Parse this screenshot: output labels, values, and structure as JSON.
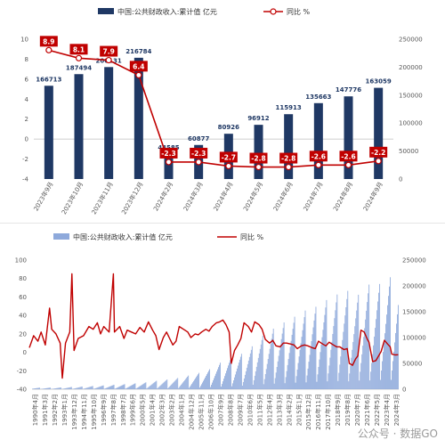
{
  "chart_data": [
    {
      "type": "bar+line",
      "legend": {
        "bar": "中国:公共财政收入:累计值 亿元",
        "line": "同比 %",
        "placement": "top"
      },
      "categories": [
        "2023年9月",
        "2023年10月",
        "2023年11月",
        "2023年12月",
        "2024年2月",
        "2024年3月",
        "2024年4月",
        "2024年5月",
        "2024年6月",
        "2024年7月",
        "2024年8月",
        "2024年9月"
      ],
      "bar_values": [
        166713,
        187494,
        200131,
        216784,
        44585,
        60877,
        80926,
        96912,
        115913,
        135663,
        147776,
        163059
      ],
      "bar_labels": [
        "166713",
        "187494",
        "200131",
        "216784",
        "44585",
        "60877",
        "80926",
        "96912",
        "115913",
        "135663",
        "147776",
        "163059"
      ],
      "line_values": [
        8.9,
        8.1,
        7.9,
        6.4,
        -2.3,
        -2.3,
        -2.7,
        -2.8,
        -2.8,
        -2.6,
        -2.6,
        -2.2
      ],
      "line_labels": [
        "8.9",
        "8.1",
        "7.9",
        "6.4",
        "-2.3",
        "-2.3",
        "-2.7",
        "-2.8",
        "-2.8",
        "-2.6",
        "-2.6",
        "-2.2"
      ],
      "y_left": {
        "min": -4,
        "max": 10,
        "ticks": [
          "10",
          "8",
          "6",
          "4",
          "2",
          "0",
          "-2",
          "-4"
        ]
      },
      "y_right": {
        "min": 0,
        "max": 250000,
        "ticks": [
          "250000",
          "200000",
          "150000",
          "100000",
          "50000",
          "0"
        ]
      },
      "colors": {
        "bar": "#1f3864",
        "line": "#c00000",
        "label_box": "#c00000"
      }
    },
    {
      "type": "bar+line",
      "legend": {
        "bar": "中国:公共财政收入:累计值 亿元",
        "line": "同比 %",
        "placement": "top"
      },
      "x_ticks": [
        "1990年4月",
        "1991年3月",
        "1992年2月",
        "1993年1月",
        "1993年12月",
        "1994年11月",
        "1995年10月",
        "1996年9月",
        "1997年8月",
        "1998年7月",
        "1999年6月",
        "2000年5月",
        "2001年4月",
        "2002年3月",
        "2003年2月",
        "2004年1月",
        "2004年12月",
        "2005年11月",
        "2006年10月",
        "2007年9月",
        "2008年8月",
        "2009年7月",
        "2010年6月",
        "2011年5月",
        "2012年4月",
        "2013年3月",
        "2014年2月",
        "2015年1月",
        "2015年12月",
        "2016年11月",
        "2017年10月",
        "2018年9月",
        "2019年8月",
        "2020年7月",
        "2021年6月",
        "2022年5月",
        "2023年4月",
        "2024年3月"
      ],
      "y_left": {
        "min": -40,
        "max": 100,
        "ticks": [
          "100",
          "80",
          "60",
          "40",
          "20",
          "0",
          "-20",
          "-40"
        ]
      },
      "y_right": {
        "min": 0,
        "max": 250000,
        "ticks": [
          "250000",
          "200000",
          "150000",
          "100000",
          "50000",
          "0"
        ]
      },
      "annual_peak_revenue": [
        {
          "year": 1990,
          "value": 2937
        },
        {
          "year": 1991,
          "value": 3149
        },
        {
          "year": 1992,
          "value": 3483
        },
        {
          "year": 1993,
          "value": 4349
        },
        {
          "year": 1994,
          "value": 5218
        },
        {
          "year": 1995,
          "value": 6242
        },
        {
          "year": 1996,
          "value": 7408
        },
        {
          "year": 1997,
          "value": 8651
        },
        {
          "year": 1998,
          "value": 9876
        },
        {
          "year": 1999,
          "value": 11444
        },
        {
          "year": 2000,
          "value": 13395
        },
        {
          "year": 2001,
          "value": 16386
        },
        {
          "year": 2002,
          "value": 18904
        },
        {
          "year": 2003,
          "value": 21715
        },
        {
          "year": 2004,
          "value": 26396
        },
        {
          "year": 2005,
          "value": 31649
        },
        {
          "year": 2006,
          "value": 38760
        },
        {
          "year": 2007,
          "value": 51322
        },
        {
          "year": 2008,
          "value": 61330
        },
        {
          "year": 2009,
          "value": 68518
        },
        {
          "year": 2010,
          "value": 83102
        },
        {
          "year": 2011,
          "value": 103874
        },
        {
          "year": 2012,
          "value": 117254
        },
        {
          "year": 2013,
          "value": 129210
        },
        {
          "year": 2014,
          "value": 140370
        },
        {
          "year": 2015,
          "value": 152269
        },
        {
          "year": 2016,
          "value": 159605
        },
        {
          "year": 2017,
          "value": 172593
        },
        {
          "year": 2018,
          "value": 183360
        },
        {
          "year": 2019,
          "value": 190390
        },
        {
          "year": 2020,
          "value": 182914
        },
        {
          "year": 2021,
          "value": 202555
        },
        {
          "year": 2022,
          "value": 203703
        },
        {
          "year": 2023,
          "value": 216784
        },
        {
          "year": 2024,
          "value": 163059
        }
      ],
      "yoy_approx": [
        {
          "year": 1990,
          "value": 5
        },
        {
          "year": 1990.4,
          "value": 18
        },
        {
          "year": 1990.8,
          "value": 12
        },
        {
          "year": 1991.1,
          "value": 22
        },
        {
          "year": 1991.5,
          "value": 8
        },
        {
          "year": 1991.9,
          "value": 48
        },
        {
          "year": 1992.1,
          "value": 25
        },
        {
          "year": 1992.5,
          "value": 20
        },
        {
          "year": 1992.9,
          "value": 10
        },
        {
          "year": 1993.1,
          "value": -28
        },
        {
          "year": 1993.4,
          "value": 10
        },
        {
          "year": 1993.8,
          "value": 22
        },
        {
          "year": 1994.0,
          "value": 85
        },
        {
          "year": 1994.2,
          "value": 2
        },
        {
          "year": 1994.6,
          "value": 15
        },
        {
          "year": 1995.1,
          "value": 18
        },
        {
          "year": 1995.6,
          "value": 28
        },
        {
          "year": 1996.0,
          "value": 25
        },
        {
          "year": 1996.4,
          "value": 32
        },
        {
          "year": 1996.7,
          "value": 20
        },
        {
          "year": 1997.0,
          "value": 28
        },
        {
          "year": 1997.5,
          "value": 22
        },
        {
          "year": 1997.9,
          "value": 85
        },
        {
          "year": 1998.0,
          "value": 22
        },
        {
          "year": 1998.5,
          "value": 28
        },
        {
          "year": 1998.9,
          "value": 15
        },
        {
          "year": 1999.2,
          "value": 24
        },
        {
          "year": 1999.6,
          "value": 22
        },
        {
          "year": 2000.0,
          "value": 20
        },
        {
          "year": 2000.4,
          "value": 27
        },
        {
          "year": 2000.8,
          "value": 22
        },
        {
          "year": 2001.2,
          "value": 33
        },
        {
          "year": 2001.6,
          "value": 24
        },
        {
          "year": 2001.9,
          "value": 18
        },
        {
          "year": 2002.2,
          "value": 3
        },
        {
          "year": 2002.6,
          "value": 16
        },
        {
          "year": 2002.9,
          "value": 22
        },
        {
          "year": 2003.2,
          "value": 15
        },
        {
          "year": 2003.5,
          "value": 8
        },
        {
          "year": 2003.8,
          "value": 12
        },
        {
          "year": 2004.1,
          "value": 28
        },
        {
          "year": 2004.5,
          "value": 25
        },
        {
          "year": 2004.9,
          "value": 22
        },
        {
          "year": 2005.2,
          "value": 16
        },
        {
          "year": 2005.6,
          "value": 20
        },
        {
          "year": 2005.9,
          "value": 19
        },
        {
          "year": 2006.2,
          "value": 22
        },
        {
          "year": 2006.6,
          "value": 25
        },
        {
          "year": 2006.9,
          "value": 23
        },
        {
          "year": 2007.2,
          "value": 28
        },
        {
          "year": 2007.6,
          "value": 32
        },
        {
          "year": 2007.9,
          "value": 33
        },
        {
          "year": 2008.2,
          "value": 35
        },
        {
          "year": 2008.5,
          "value": 30
        },
        {
          "year": 2008.8,
          "value": 22
        },
        {
          "year": 2009.0,
          "value": -12
        },
        {
          "year": 2009.3,
          "value": 2
        },
        {
          "year": 2009.6,
          "value": 8
        },
        {
          "year": 2009.9,
          "value": 15
        },
        {
          "year": 2010.2,
          "value": 32
        },
        {
          "year": 2010.6,
          "value": 28
        },
        {
          "year": 2010.9,
          "value": 22
        },
        {
          "year": 2011.2,
          "value": 33
        },
        {
          "year": 2011.6,
          "value": 30
        },
        {
          "year": 2011.9,
          "value": 25
        },
        {
          "year": 2012.2,
          "value": 14
        },
        {
          "year": 2012.6,
          "value": 10
        },
        {
          "year": 2012.9,
          "value": 13
        },
        {
          "year": 2013.2,
          "value": 7
        },
        {
          "year": 2013.6,
          "value": 6
        },
        {
          "year": 2013.9,
          "value": 10
        },
        {
          "year": 2014.2,
          "value": 10
        },
        {
          "year": 2014.6,
          "value": 9
        },
        {
          "year": 2014.9,
          "value": 8
        },
        {
          "year": 2015.2,
          "value": 4
        },
        {
          "year": 2015.6,
          "value": 7
        },
        {
          "year": 2015.9,
          "value": 8
        },
        {
          "year": 2016.2,
          "value": 7
        },
        {
          "year": 2016.6,
          "value": 5
        },
        {
          "year": 2016.9,
          "value": 4
        },
        {
          "year": 2017.2,
          "value": 12
        },
        {
          "year": 2017.6,
          "value": 9
        },
        {
          "year": 2017.9,
          "value": 7
        },
        {
          "year": 2018.2,
          "value": 11
        },
        {
          "year": 2018.6,
          "value": 8
        },
        {
          "year": 2018.9,
          "value": 6
        },
        {
          "year": 2019.2,
          "value": 6
        },
        {
          "year": 2019.6,
          "value": 3
        },
        {
          "year": 2019.9,
          "value": 4
        },
        {
          "year": 2020.1,
          "value": -12
        },
        {
          "year": 2020.4,
          "value": -14
        },
        {
          "year": 2020.7,
          "value": -7
        },
        {
          "year": 2020.9,
          "value": -4
        },
        {
          "year": 2021.2,
          "value": 24
        },
        {
          "year": 2021.5,
          "value": 22
        },
        {
          "year": 2021.8,
          "value": 14
        },
        {
          "year": 2021.95,
          "value": 11
        },
        {
          "year": 2022.3,
          "value": -10
        },
        {
          "year": 2022.6,
          "value": -9
        },
        {
          "year": 2022.9,
          "value": -3
        },
        {
          "year": 2023.1,
          "value": 1
        },
        {
          "year": 2023.4,
          "value": 13
        },
        {
          "year": 2023.7,
          "value": 9
        },
        {
          "year": 2023.95,
          "value": 6
        },
        {
          "year": 2024.1,
          "value": -2
        },
        {
          "year": 2024.4,
          "value": -2.8
        },
        {
          "year": 2024.7,
          "value": -2.6
        }
      ],
      "colors": {
        "bar": "#8ea9db",
        "line": "#c00000"
      }
    }
  ],
  "watermark": "公众号 · 数据GO"
}
